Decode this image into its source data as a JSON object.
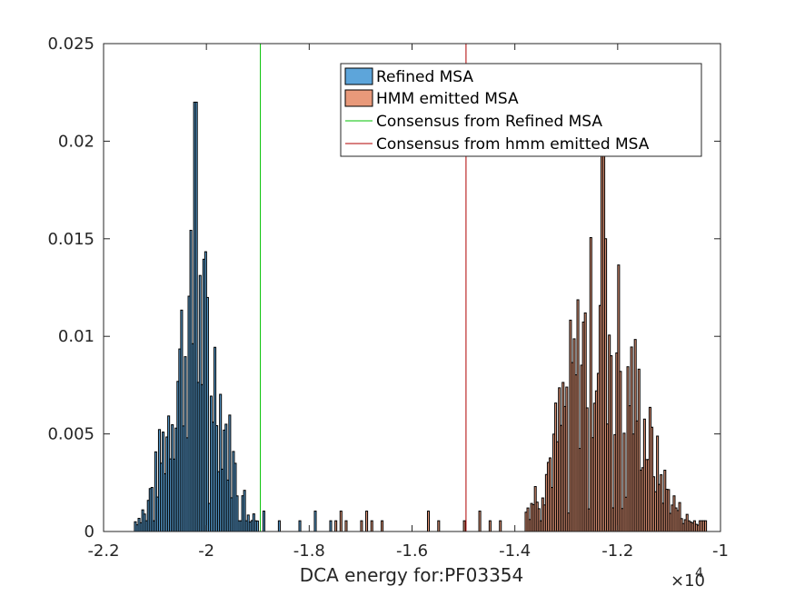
{
  "chart_data": {
    "type": "histogram",
    "title": "",
    "xlabel": "DCA energy for:PF03354",
    "ylabel": "",
    "x_exponent_label": "×10",
    "x_exponent_power": "4",
    "xlim": [
      -22000,
      -10000
    ],
    "ylim": [
      0,
      0.025
    ],
    "x_ticks": [
      -22000,
      -20000,
      -18000,
      -16000,
      -14000,
      -12000,
      -10000
    ],
    "x_tick_labels": [
      "-2.2",
      "-2",
      "-1.8",
      "-1.6",
      "-1.4",
      "-1.2",
      "-1"
    ],
    "y_ticks": [
      0,
      0.005,
      0.01,
      0.015,
      0.02,
      0.025
    ],
    "y_tick_labels": [
      "0",
      "0.005",
      "0.01",
      "0.015",
      "0.02",
      "0.025"
    ],
    "grid": false,
    "legend_position": "top-right",
    "bin_width": 36,
    "series": [
      {
        "name": "Refined MSA",
        "color": "#5da5da",
        "x_range": [
          -21400,
          -19000
        ],
        "peak_x": -20200,
        "peak_y": 0.022,
        "typical_y": 0.009
      },
      {
        "name": "HMM emitted MSA",
        "color": "#e8997a",
        "x_range": [
          -13800,
          -10300
        ],
        "peak_x": -12300,
        "peak_y": 0.0193,
        "typical_y": 0.009
      }
    ],
    "scatter_tail_bins_x": [
      -18900,
      -18600,
      -18200,
      -17900,
      -17600,
      -17500,
      -17400,
      -17300,
      -17000,
      -16900,
      -16800,
      -16600,
      -15700,
      -15500,
      -15000,
      -14700,
      -14500,
      -14300
    ],
    "scatter_tail_bins_y": 0.00055,
    "reference_lines": [
      {
        "name": "Consensus from Refined MSA",
        "x": -18950,
        "color": "#00c000"
      },
      {
        "name": "Consensus from hmm emitted MSA",
        "x": -14950,
        "color": "#b00000"
      }
    ]
  }
}
